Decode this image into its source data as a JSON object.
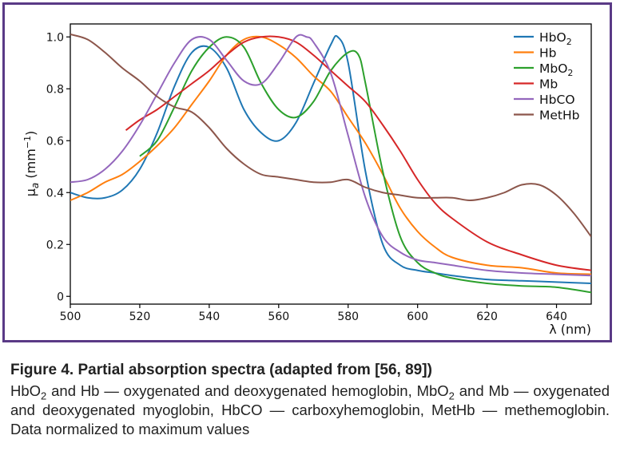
{
  "chart_data": {
    "type": "line",
    "title": "",
    "xlabel": "λ (nm)",
    "ylabel": "μa (mm⁻¹)",
    "xlim": [
      500,
      650
    ],
    "ylim": [
      -0.03,
      1.05
    ],
    "xticks": [
      500,
      520,
      540,
      560,
      580,
      600,
      620,
      640
    ],
    "yticks": [
      0,
      0.2,
      0.4,
      0.6,
      0.8,
      1.0
    ],
    "xtick_labels": [
      "500",
      "520",
      "540",
      "560",
      "580",
      "600",
      "620",
      "640"
    ],
    "ytick_labels": [
      "0",
      "0.2",
      "0.4",
      "0.6",
      "0.8",
      "1.0"
    ],
    "grid": false,
    "legend_position": "top-right",
    "series": [
      {
        "name": "HbO2",
        "color": "#1f77b4",
        "x": [
          500,
          505,
          510,
          515,
          520,
          525,
          530,
          535,
          540,
          545,
          550,
          555,
          560,
          565,
          570,
          575,
          577,
          580,
          585,
          590,
          595,
          600,
          605,
          610,
          620,
          630,
          640,
          650
        ],
        "y": [
          0.4,
          0.38,
          0.38,
          0.41,
          0.49,
          0.63,
          0.81,
          0.94,
          0.96,
          0.88,
          0.72,
          0.63,
          0.6,
          0.67,
          0.82,
          0.97,
          1.0,
          0.9,
          0.48,
          0.2,
          0.12,
          0.1,
          0.09,
          0.08,
          0.065,
          0.06,
          0.055,
          0.05
        ]
      },
      {
        "name": "Hb",
        "color": "#ff7f0e",
        "x": [
          500,
          505,
          510,
          515,
          520,
          525,
          530,
          535,
          540,
          545,
          550,
          555,
          560,
          565,
          570,
          575,
          580,
          585,
          590,
          595,
          600,
          605,
          610,
          620,
          630,
          640,
          650
        ],
        "y": [
          0.37,
          0.4,
          0.44,
          0.47,
          0.52,
          0.58,
          0.65,
          0.74,
          0.83,
          0.93,
          0.99,
          1.0,
          0.97,
          0.92,
          0.85,
          0.79,
          0.69,
          0.59,
          0.47,
          0.34,
          0.25,
          0.19,
          0.15,
          0.12,
          0.11,
          0.09,
          0.085
        ]
      },
      {
        "name": "MbO2",
        "color": "#2ca02c",
        "x": [
          520,
          525,
          530,
          535,
          540,
          545,
          550,
          555,
          560,
          565,
          570,
          575,
          580,
          583,
          585,
          590,
          595,
          600,
          605,
          610,
          620,
          630,
          640,
          650
        ],
        "y": [
          0.54,
          0.6,
          0.73,
          0.87,
          0.96,
          1.0,
          0.96,
          0.82,
          0.72,
          0.69,
          0.75,
          0.87,
          0.94,
          0.93,
          0.82,
          0.48,
          0.23,
          0.13,
          0.09,
          0.07,
          0.05,
          0.04,
          0.035,
          0.015
        ]
      },
      {
        "name": "Mb",
        "color": "#d62728",
        "x": [
          516,
          520,
          525,
          530,
          535,
          540,
          545,
          550,
          555,
          560,
          565,
          570,
          575,
          580,
          585,
          590,
          595,
          600,
          605,
          610,
          620,
          630,
          640,
          650
        ],
        "y": [
          0.64,
          0.68,
          0.72,
          0.77,
          0.82,
          0.87,
          0.93,
          0.98,
          1.0,
          1.0,
          0.98,
          0.93,
          0.87,
          0.81,
          0.75,
          0.66,
          0.56,
          0.45,
          0.36,
          0.3,
          0.21,
          0.16,
          0.12,
          0.1
        ]
      },
      {
        "name": "HbCO",
        "color": "#9467bd",
        "x": [
          500,
          505,
          510,
          515,
          520,
          525,
          530,
          535,
          540,
          545,
          550,
          555,
          560,
          565,
          568,
          570,
          575,
          580,
          585,
          590,
          595,
          600,
          605,
          610,
          620,
          630,
          640,
          650
        ],
        "y": [
          0.44,
          0.45,
          0.49,
          0.56,
          0.66,
          0.78,
          0.9,
          0.99,
          0.99,
          0.91,
          0.83,
          0.82,
          0.9,
          1.0,
          1.0,
          0.98,
          0.86,
          0.62,
          0.38,
          0.23,
          0.17,
          0.14,
          0.13,
          0.12,
          0.1,
          0.09,
          0.085,
          0.08
        ]
      },
      {
        "name": "MetHb",
        "color": "#8c564b",
        "x": [
          500,
          505,
          510,
          515,
          520,
          525,
          530,
          535,
          540,
          545,
          550,
          555,
          560,
          565,
          570,
          575,
          580,
          585,
          590,
          595,
          600,
          605,
          610,
          615,
          620,
          625,
          630,
          635,
          640,
          645,
          650
        ],
        "y": [
          1.01,
          0.99,
          0.94,
          0.88,
          0.83,
          0.77,
          0.73,
          0.71,
          0.65,
          0.57,
          0.51,
          0.47,
          0.46,
          0.45,
          0.44,
          0.44,
          0.45,
          0.42,
          0.4,
          0.39,
          0.38,
          0.38,
          0.38,
          0.37,
          0.38,
          0.4,
          0.43,
          0.43,
          0.39,
          0.32,
          0.23
        ]
      }
    ]
  },
  "legend": {
    "entries": [
      {
        "base": "HbO",
        "sub": "2",
        "color": "#1f77b4"
      },
      {
        "base": "Hb",
        "sub": "",
        "color": "#ff7f0e"
      },
      {
        "base": "MbO",
        "sub": "2",
        "color": "#2ca02c"
      },
      {
        "base": "Mb",
        "sub": "",
        "color": "#d62728"
      },
      {
        "base": "HbCO",
        "sub": "",
        "color": "#9467bd"
      },
      {
        "base": "MetHb",
        "sub": "",
        "color": "#8c564b"
      }
    ]
  },
  "axis_labels": {
    "x": "λ (nm)",
    "y_mu": "μ",
    "y_sub": "a",
    "y_unit_open": " (mm",
    "y_unit_sup": "−1",
    "y_unit_close": ")"
  },
  "caption": {
    "title": "Figure 4. Partial absorption spectra (adapted from [56, 89])",
    "parts": [
      {
        "t": "HbO"
      },
      {
        "t": "2",
        "sub": true
      },
      {
        "t": " and Hb — oxygenated and deoxygenated hemoglobin, MbO"
      },
      {
        "t": "2",
        "sub": true
      },
      {
        "t": " and Mb — oxygenated and deoxygenated myoglobin, HbCO — carboxyhemoglobin, MetHb — methemoglobin. Data normalized to maximum values"
      }
    ]
  },
  "frame_color": "#5a3a86"
}
